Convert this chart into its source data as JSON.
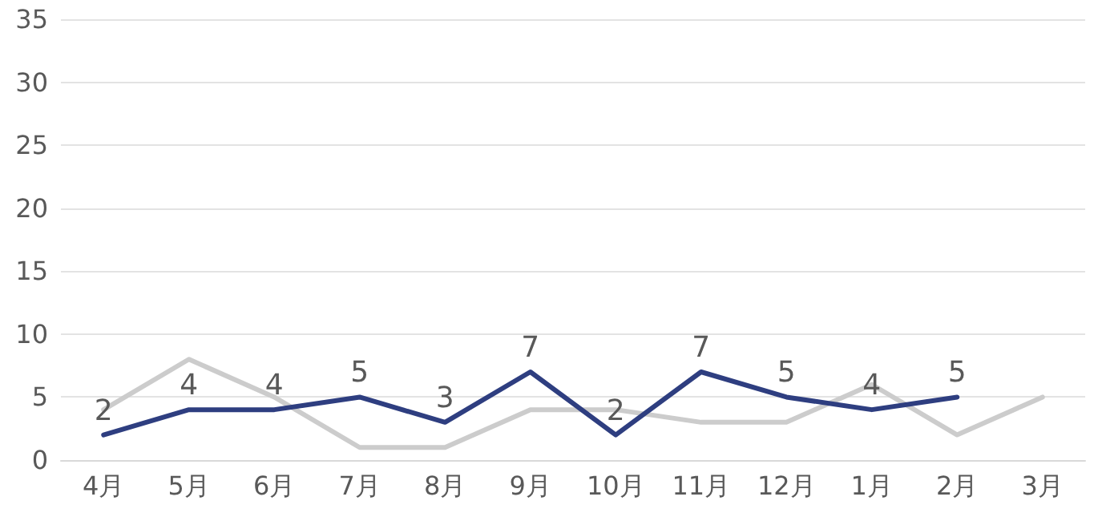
{
  "chart_data": {
    "type": "line",
    "categories": [
      "4月",
      "5月",
      "6月",
      "7月",
      "8月",
      "9月",
      "10月",
      "11月",
      "12月",
      "1月",
      "2月",
      "3月"
    ],
    "series": [
      {
        "color": "#cccccc",
        "values": [
          4,
          8,
          5,
          1,
          1,
          4,
          4,
          3,
          3,
          6,
          2,
          5
        ]
      },
      {
        "color": "#2e3e80",
        "values": [
          2,
          4,
          4,
          5,
          3,
          7,
          2,
          7,
          5,
          4,
          5,
          null
        ],
        "value_labels": [
          "2",
          "4",
          "4",
          "5",
          "3",
          "7",
          "2",
          "7",
          "5",
          "4",
          "5",
          null
        ]
      }
    ],
    "ylim": [
      0,
      35
    ],
    "yticks": [
      0,
      5,
      10,
      15,
      20,
      25,
      30,
      35
    ],
    "grid": "y",
    "marker": "none",
    "line_style": "solid"
  }
}
